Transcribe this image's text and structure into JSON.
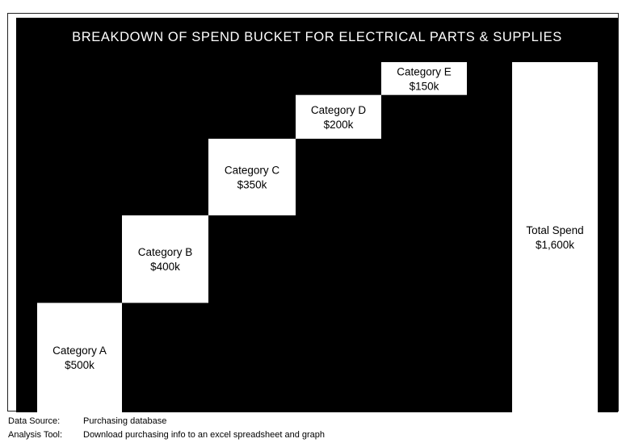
{
  "chart_data": {
    "type": "bar",
    "subtype": "waterfall",
    "title": "BREAKDOWN OF SPEND BUCKET FOR ELECTRICAL PARTS & SUPPLIES",
    "categories": [
      "Category A",
      "Category B",
      "Category C",
      "Category D",
      "Category E",
      "Total Spend"
    ],
    "values": [
      500,
      400,
      350,
      200,
      150,
      1600
    ],
    "value_labels": [
      "$500k",
      "$400k",
      "$350k",
      "$200k",
      "$150k",
      "$1,600k"
    ],
    "unit": "$k",
    "ylim": [
      0,
      1600
    ],
    "background": "#000000",
    "bar_color": "#ffffff",
    "grid": false,
    "legend": "none"
  },
  "footer": {
    "data_source_label": "Data Source:",
    "data_source_value": "Purchasing database",
    "analysis_tool_label": "Analysis Tool:",
    "analysis_tool_value": "Download purchasing info to an excel spreadsheet and graph"
  }
}
